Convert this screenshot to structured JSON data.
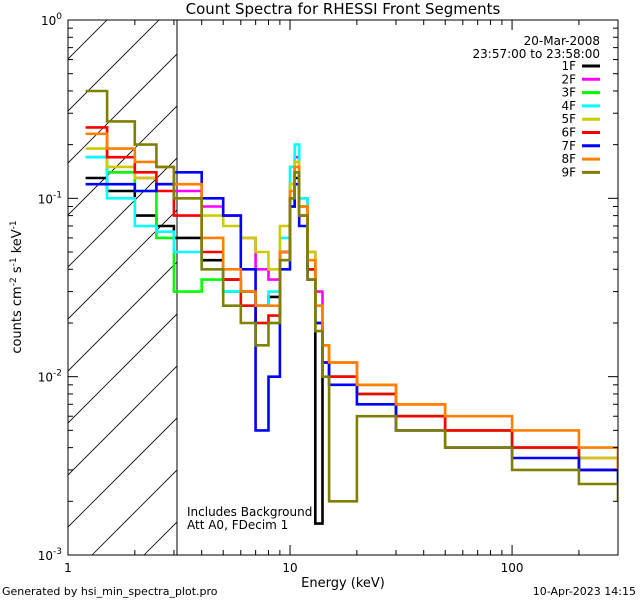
{
  "chart_data": {
    "type": "line",
    "title": "Count Spectra for RHESSI Front Segments",
    "xlabel": "Energy (keV)",
    "ylabel_parts": {
      "a": "counts cm",
      "b": "-2",
      "c": " s",
      "d": "-1",
      "e": " keV",
      "f": "-1"
    },
    "xscale": "log",
    "yscale": "log",
    "xlim": [
      1,
      300
    ],
    "ylim": [
      0.001,
      1
    ],
    "x_ticks": [
      {
        "value": 1,
        "label": "1"
      },
      {
        "value": 10,
        "label": "10"
      },
      {
        "value": 100,
        "label": "100"
      }
    ],
    "y_ticks": [
      {
        "value": 0.001,
        "base": "10",
        "exp": "-3"
      },
      {
        "value": 0.01,
        "base": "10",
        "exp": "-2"
      },
      {
        "value": 0.1,
        "base": "10",
        "exp": "-1"
      },
      {
        "value": 1,
        "base": "10",
        "exp": "0"
      }
    ],
    "shaded_region": {
      "x_from": 1,
      "x_to": 3,
      "pattern": "diagonal hatching"
    },
    "date": "20-Mar-2008",
    "time_range": "23:57:00 to 23:58:00",
    "annotations": [
      "Includes Background",
      "Att A0, FDecim 1"
    ],
    "legend_position": "top-right",
    "series": [
      {
        "name": "1F",
        "color": "#000000",
        "points": [
          [
            1.2,
            0.13
          ],
          [
            1.5,
            0.11
          ],
          [
            2.0,
            0.08
          ],
          [
            2.5,
            0.07
          ],
          [
            3.0,
            0.06
          ],
          [
            4.0,
            0.045
          ],
          [
            5.0,
            0.035
          ],
          [
            6.0,
            0.03
          ],
          [
            7.0,
            0.025
          ],
          [
            8.0,
            0.028
          ],
          [
            9.0,
            0.05
          ],
          [
            10.0,
            0.09
          ],
          [
            10.5,
            0.13
          ],
          [
            11.0,
            0.09
          ],
          [
            12.0,
            0.04
          ],
          [
            13.0,
            0.0015
          ],
          [
            14.0,
            0.012
          ],
          [
            15.0,
            0.01
          ],
          [
            20.0,
            0.008
          ],
          [
            30.0,
            0.006
          ],
          [
            50.0,
            0.005
          ],
          [
            100.0,
            0.004
          ],
          [
            200.0,
            0.003
          ],
          [
            300.0,
            0.003
          ]
        ]
      },
      {
        "name": "2F",
        "color": "#ff00ff",
        "points": [
          [
            1.2,
            0.17
          ],
          [
            1.5,
            0.14
          ],
          [
            2.0,
            0.13
          ],
          [
            2.5,
            0.12
          ],
          [
            3.0,
            0.11
          ],
          [
            4.0,
            0.09
          ],
          [
            5.0,
            0.08
          ],
          [
            6.0,
            0.06
          ],
          [
            7.0,
            0.04
          ],
          [
            8.0,
            0.035
          ],
          [
            9.0,
            0.05
          ],
          [
            10.0,
            0.12
          ],
          [
            10.5,
            0.17
          ],
          [
            11.0,
            0.1
          ],
          [
            12.0,
            0.05
          ],
          [
            13.0,
            0.03
          ],
          [
            14.0,
            0.015
          ],
          [
            15.0,
            0.012
          ],
          [
            20.0,
            0.009
          ],
          [
            30.0,
            0.007
          ],
          [
            50.0,
            0.005
          ],
          [
            100.0,
            0.004
          ],
          [
            200.0,
            0.0035
          ],
          [
            300.0,
            0.003
          ]
        ]
      },
      {
        "name": "3F",
        "color": "#00ff00",
        "points": [
          [
            1.2,
            0.17
          ],
          [
            1.5,
            0.14
          ],
          [
            2.0,
            0.11
          ],
          [
            2.5,
            0.06
          ],
          [
            3.0,
            0.03
          ],
          [
            4.0,
            0.035
          ],
          [
            5.0,
            0.03
          ],
          [
            6.0,
            0.025
          ],
          [
            7.0,
            0.02
          ],
          [
            8.0,
            0.02
          ],
          [
            9.0,
            0.045
          ],
          [
            10.0,
            0.1
          ],
          [
            10.5,
            0.14
          ],
          [
            11.0,
            0.08
          ],
          [
            12.0,
            0.04
          ],
          [
            13.0,
            0.02
          ],
          [
            14.0,
            0.012
          ],
          [
            15.0,
            0.01
          ],
          [
            20.0,
            0.008
          ],
          [
            30.0,
            0.006
          ],
          [
            50.0,
            0.005
          ],
          [
            100.0,
            0.004
          ],
          [
            200.0,
            0.003
          ],
          [
            300.0,
            0.003
          ]
        ]
      },
      {
        "name": "4F",
        "color": "#00ffff",
        "points": [
          [
            1.2,
            0.17
          ],
          [
            1.5,
            0.1
          ],
          [
            2.0,
            0.07
          ],
          [
            2.5,
            0.065
          ],
          [
            3.0,
            0.05
          ],
          [
            4.0,
            0.04
          ],
          [
            5.0,
            0.03
          ],
          [
            6.0,
            0.025
          ],
          [
            7.0,
            0.025
          ],
          [
            8.0,
            0.03
          ],
          [
            9.0,
            0.06
          ],
          [
            10.0,
            0.15
          ],
          [
            10.5,
            0.2
          ],
          [
            11.0,
            0.1
          ],
          [
            12.0,
            0.04
          ],
          [
            13.0,
            0.02
          ],
          [
            14.0,
            0.012
          ],
          [
            15.0,
            0.01
          ],
          [
            20.0,
            0.008
          ],
          [
            30.0,
            0.006
          ],
          [
            50.0,
            0.005
          ],
          [
            100.0,
            0.004
          ],
          [
            200.0,
            0.003
          ],
          [
            300.0,
            0.003
          ]
        ]
      },
      {
        "name": "5F",
        "color": "#cccc00",
        "points": [
          [
            1.2,
            0.19
          ],
          [
            1.5,
            0.15
          ],
          [
            2.0,
            0.13
          ],
          [
            2.5,
            0.12
          ],
          [
            3.0,
            0.1
          ],
          [
            4.0,
            0.08
          ],
          [
            5.0,
            0.07
          ],
          [
            6.0,
            0.06
          ],
          [
            7.0,
            0.05
          ],
          [
            8.0,
            0.04
          ],
          [
            9.0,
            0.07
          ],
          [
            10.0,
            0.12
          ],
          [
            10.5,
            0.16
          ],
          [
            11.0,
            0.09
          ],
          [
            12.0,
            0.05
          ],
          [
            13.0,
            0.025
          ],
          [
            14.0,
            0.015
          ],
          [
            15.0,
            0.012
          ],
          [
            20.0,
            0.009
          ],
          [
            30.0,
            0.007
          ],
          [
            50.0,
            0.005
          ],
          [
            100.0,
            0.004
          ],
          [
            200.0,
            0.0035
          ],
          [
            300.0,
            0.003
          ]
        ]
      },
      {
        "name": "6F",
        "color": "#ff0000",
        "points": [
          [
            1.2,
            0.25
          ],
          [
            1.5,
            0.17
          ],
          [
            2.0,
            0.14
          ],
          [
            2.5,
            0.11
          ],
          [
            3.0,
            0.08
          ],
          [
            4.0,
            0.05
          ],
          [
            5.0,
            0.035
          ],
          [
            6.0,
            0.025
          ],
          [
            7.0,
            0.02
          ],
          [
            8.0,
            0.022
          ],
          [
            9.0,
            0.05
          ],
          [
            10.0,
            0.1
          ],
          [
            10.5,
            0.14
          ],
          [
            11.0,
            0.08
          ],
          [
            12.0,
            0.04
          ],
          [
            13.0,
            0.02
          ],
          [
            14.0,
            0.012
          ],
          [
            15.0,
            0.01
          ],
          [
            20.0,
            0.008
          ],
          [
            30.0,
            0.006
          ],
          [
            50.0,
            0.005
          ],
          [
            100.0,
            0.004
          ],
          [
            200.0,
            0.003
          ],
          [
            300.0,
            0.003
          ]
        ]
      },
      {
        "name": "7F",
        "color": "#0000ff",
        "points": [
          [
            1.2,
            0.12
          ],
          [
            1.5,
            0.12
          ],
          [
            2.0,
            0.11
          ],
          [
            2.5,
            0.12
          ],
          [
            3.0,
            0.14
          ],
          [
            4.0,
            0.1
          ],
          [
            5.0,
            0.08
          ],
          [
            6.0,
            0.04
          ],
          [
            7.0,
            0.005
          ],
          [
            8.0,
            0.01
          ],
          [
            9.0,
            0.04
          ],
          [
            10.0,
            0.09
          ],
          [
            10.5,
            0.12
          ],
          [
            11.0,
            0.07
          ],
          [
            12.0,
            0.035
          ],
          [
            13.0,
            0.02
          ],
          [
            14.0,
            0.012
          ],
          [
            15.0,
            0.009
          ],
          [
            20.0,
            0.007
          ],
          [
            30.0,
            0.005
          ],
          [
            50.0,
            0.004
          ],
          [
            100.0,
            0.0035
          ],
          [
            200.0,
            0.003
          ],
          [
            300.0,
            0.0025
          ]
        ]
      },
      {
        "name": "8F",
        "color": "#ff8000",
        "points": [
          [
            1.2,
            0.23
          ],
          [
            1.5,
            0.19
          ],
          [
            2.0,
            0.16
          ],
          [
            2.5,
            0.15
          ],
          [
            3.0,
            0.12
          ],
          [
            4.0,
            0.06
          ],
          [
            5.0,
            0.04
          ],
          [
            6.0,
            0.03
          ],
          [
            7.0,
            0.025
          ],
          [
            8.0,
            0.025
          ],
          [
            9.0,
            0.05
          ],
          [
            10.0,
            0.11
          ],
          [
            10.5,
            0.15
          ],
          [
            11.0,
            0.09
          ],
          [
            12.0,
            0.045
          ],
          [
            13.0,
            0.025
          ],
          [
            14.0,
            0.015
          ],
          [
            15.0,
            0.012
          ],
          [
            20.0,
            0.009
          ],
          [
            30.0,
            0.007
          ],
          [
            50.0,
            0.006
          ],
          [
            100.0,
            0.005
          ],
          [
            200.0,
            0.004
          ],
          [
            300.0,
            0.003
          ]
        ]
      },
      {
        "name": "9F",
        "color": "#808000",
        "points": [
          [
            1.2,
            0.4
          ],
          [
            1.5,
            0.27
          ],
          [
            2.0,
            0.2
          ],
          [
            2.5,
            0.15
          ],
          [
            3.0,
            0.1
          ],
          [
            4.0,
            0.04
          ],
          [
            5.0,
            0.025
          ],
          [
            6.0,
            0.02
          ],
          [
            7.0,
            0.015
          ],
          [
            8.0,
            0.02
          ],
          [
            9.0,
            0.045
          ],
          [
            10.0,
            0.1
          ],
          [
            10.5,
            0.14
          ],
          [
            11.0,
            0.08
          ],
          [
            12.0,
            0.035
          ],
          [
            13.0,
            0.018
          ],
          [
            14.0,
            0.01
          ],
          [
            15.0,
            0.002
          ],
          [
            20.0,
            0.006
          ],
          [
            30.0,
            0.005
          ],
          [
            50.0,
            0.004
          ],
          [
            100.0,
            0.003
          ],
          [
            200.0,
            0.0025
          ],
          [
            300.0,
            0.002
          ]
        ]
      }
    ]
  },
  "footer": {
    "left": "Generated by hsi_min_spectra_plot.pro",
    "right": "10-Apr-2023 14:15"
  }
}
